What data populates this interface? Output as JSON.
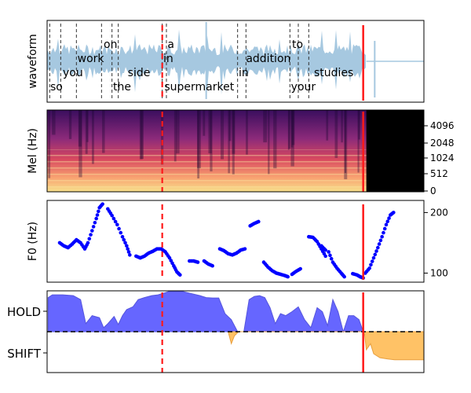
{
  "colors": {
    "waveform": "#a6c8e0",
    "f0_points": "#0000ff",
    "hold_fill": "#6666ff",
    "hold_line": "#5555dd",
    "shift_fill": "#ffc266",
    "red_line": "#ff1a1a",
    "word_line": "#333333",
    "axis": "#000000"
  },
  "chart_data": [
    {
      "type": "area",
      "panel": "waveform",
      "ylabel": "waveform",
      "words": [
        {
          "text": "so",
          "t": 0.3
        },
        {
          "text": "you",
          "t": 1.5
        },
        {
          "text": "work",
          "t": 2.9
        },
        {
          "text": "on",
          "t": 5.4
        },
        {
          "text": "the",
          "t": 6.3
        },
        {
          "text": "side",
          "t": 7.7
        },
        {
          "text": "in",
          "t": 11.1
        },
        {
          "text": "a",
          "t": 11.5
        },
        {
          "text": "supermarket",
          "t": 11.2
        },
        {
          "text": "in",
          "t": 18.3
        },
        {
          "text": "addition",
          "t": 19.0
        },
        {
          "text": "to",
          "t": 23.4
        },
        {
          "text": "your",
          "t": 23.3
        },
        {
          "text": "studies",
          "t": 25.5
        }
      ],
      "word_boundaries": [
        0.25,
        1.3,
        2.8,
        5.2,
        6.2,
        6.8,
        11.0,
        11.4,
        18.2,
        19.0,
        23.2,
        24.0,
        25.0
      ],
      "markers": {
        "dashed_red": 11.0,
        "solid_red": 30.2
      },
      "speech_end": 30.5,
      "xlim": [
        0,
        36
      ]
    },
    {
      "type": "heatmap",
      "panel": "mel_spectrogram",
      "ylabel": "Mel (Hz)",
      "y_ticks": [
        "0",
        "512",
        "1024",
        "2048",
        "4096"
      ],
      "silent_from": 30.5,
      "xlim": [
        0,
        36
      ]
    },
    {
      "type": "scatter",
      "panel": "f0",
      "ylabel": "F0 (Hz)",
      "y_ticks": [
        100,
        200
      ],
      "ylim": [
        85,
        220
      ],
      "segments": [
        [
          [
            1.2,
            150
          ],
          [
            1.6,
            145
          ],
          [
            2.0,
            142
          ],
          [
            2.4,
            148
          ],
          [
            2.8,
            155
          ],
          [
            3.2,
            150
          ],
          [
            3.6,
            140
          ],
          [
            3.9,
            150
          ],
          [
            4.3,
            170
          ],
          [
            4.7,
            190
          ],
          [
            5.0,
            208
          ],
          [
            5.3,
            214
          ]
        ],
        [
          [
            5.8,
            206
          ],
          [
            6.2,
            195
          ],
          [
            6.7,
            180
          ],
          [
            7.2,
            160
          ],
          [
            7.6,
            145
          ],
          [
            7.9,
            130
          ]
        ],
        [
          [
            8.5,
            128
          ],
          [
            8.9,
            125
          ],
          [
            9.3,
            128
          ],
          [
            9.7,
            133
          ],
          [
            10.1,
            136
          ],
          [
            10.5,
            140
          ],
          [
            10.9,
            140
          ],
          [
            11.3,
            135
          ],
          [
            11.7,
            125
          ],
          [
            12.1,
            112
          ],
          [
            12.4,
            102
          ],
          [
            12.7,
            97
          ]
        ],
        [
          [
            13.6,
            120
          ],
          [
            14.0,
            120
          ],
          [
            14.4,
            118
          ]
        ],
        [
          [
            15.0,
            120
          ],
          [
            15.4,
            115
          ],
          [
            15.8,
            112
          ]
        ],
        [
          [
            16.5,
            140
          ],
          [
            16.9,
            137
          ],
          [
            17.3,
            132
          ],
          [
            17.7,
            130
          ],
          [
            18.1,
            133
          ],
          [
            18.5,
            138
          ],
          [
            18.9,
            140
          ]
        ],
        [
          [
            19.4,
            178
          ],
          [
            19.8,
            182
          ],
          [
            20.2,
            185
          ]
        ],
        [
          [
            20.7,
            118
          ],
          [
            21.1,
            110
          ],
          [
            21.5,
            104
          ],
          [
            21.9,
            100
          ],
          [
            22.3,
            98
          ],
          [
            22.7,
            96
          ],
          [
            23.0,
            94
          ]
        ],
        [
          [
            23.4,
            98
          ],
          [
            23.8,
            103
          ],
          [
            24.2,
            107
          ]
        ],
        [
          [
            25.0,
            160
          ],
          [
            25.4,
            159
          ],
          [
            25.8,
            152
          ],
          [
            26.2,
            140
          ],
          [
            26.6,
            128
          ]
        ],
        [
          [
            26.2,
            145
          ],
          [
            26.6,
            138
          ]
        ],
        [
          [
            26.9,
            135
          ],
          [
            27.3,
            118
          ],
          [
            27.7,
            108
          ],
          [
            28.1,
            100
          ],
          [
            28.4,
            94
          ]
        ],
        [
          [
            29.2,
            99
          ],
          [
            29.6,
            97
          ],
          [
            29.9,
            94
          ],
          [
            30.2,
            92
          ]
        ],
        [
          [
            30.4,
            100
          ],
          [
            30.8,
            108
          ],
          [
            31.2,
            125
          ],
          [
            31.6,
            142
          ],
          [
            32.0,
            160
          ],
          [
            32.4,
            180
          ],
          [
            32.8,
            196
          ],
          [
            33.1,
            200
          ]
        ]
      ],
      "markers": {
        "dashed_red": 11.0,
        "solid_red": 30.2
      },
      "xlim": [
        0,
        36
      ]
    },
    {
      "type": "area",
      "panel": "turn_taking",
      "y_ticks": [
        "HOLD",
        "SHIFT"
      ],
      "ylim": [
        -1,
        1
      ],
      "hold": {
        "x": [
          0.1,
          0.5,
          1.5,
          2.5,
          3.2,
          3.7,
          4.3,
          5.0,
          5.4,
          5.8,
          6.4,
          6.8,
          7.2,
          7.6,
          8.2,
          8.7,
          9.3,
          10.0,
          10.6,
          11.0,
          11.6,
          12.3,
          13.0,
          13.8,
          14.6,
          15.2,
          15.8,
          16.4,
          17.0,
          17.6,
          18.2,
          18.8,
          19.3,
          19.8,
          20.3,
          20.8,
          21.3,
          21.8,
          22.3,
          22.8,
          23.4,
          24.0,
          24.6,
          25.2,
          25.8,
          26.3,
          26.8,
          27.3,
          27.8,
          28.3,
          28.8,
          29.3,
          29.8,
          30.2
        ],
        "y": [
          0.85,
          0.92,
          0.92,
          0.9,
          0.8,
          0.2,
          0.4,
          0.35,
          0.1,
          0.2,
          0.38,
          0.18,
          0.4,
          0.55,
          0.62,
          0.8,
          0.85,
          0.9,
          0.92,
          0.95,
          1.0,
          1.0,
          1.0,
          0.95,
          0.9,
          0.85,
          0.84,
          0.84,
          0.45,
          0.3,
          0.0,
          0.0,
          0.8,
          0.88,
          0.9,
          0.85,
          0.6,
          0.2,
          0.45,
          0.4,
          0.5,
          0.62,
          0.3,
          0.1,
          0.6,
          0.5,
          0.15,
          0.8,
          0.5,
          0.0,
          0.4,
          0.4,
          0.3,
          0.0
        ]
      },
      "shift": {
        "x": [
          17.3,
          17.6,
          17.9,
          18.3,
          18.7,
          19.1,
          19.5,
          19.9,
          20.5,
          21.0,
          21.5,
          22.0,
          22.5,
          23.0,
          23.5,
          24.0,
          24.5,
          25.0,
          25.5,
          26.0,
          26.5,
          27.0,
          27.5,
          28.0,
          28.5,
          29.0,
          29.5,
          30.0,
          30.3,
          30.5,
          30.9,
          31.2,
          31.8,
          32.5,
          33.2,
          34.0,
          35.0,
          36.0
        ],
        "y": [
          0,
          -0.3,
          -0.1,
          0,
          0,
          0,
          0,
          0,
          0,
          0,
          0,
          0,
          0,
          0,
          0,
          0,
          0,
          0,
          0,
          0,
          0,
          0,
          0,
          0,
          0,
          0,
          0,
          0,
          0,
          -0.45,
          -0.3,
          -0.55,
          -0.65,
          -0.68,
          -0.7,
          -0.7,
          -0.7,
          -0.7
        ]
      },
      "markers": {
        "dashed_red": 11.0,
        "solid_red": 30.2
      },
      "xlim": [
        0,
        36
      ]
    }
  ]
}
